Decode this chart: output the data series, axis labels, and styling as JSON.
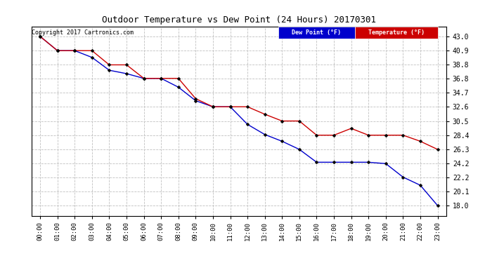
{
  "title": "Outdoor Temperature vs Dew Point (24 Hours) 20170301",
  "copyright": "Copyright 2017 Cartronics.com",
  "temp_color": "#cc0000",
  "dew_color": "#0000cc",
  "background_color": "#ffffff",
  "grid_color": "#c0c0c0",
  "x_labels": [
    "00:00",
    "01:00",
    "02:00",
    "03:00",
    "04:00",
    "05:00",
    "06:00",
    "07:00",
    "08:00",
    "09:00",
    "10:00",
    "11:00",
    "12:00",
    "13:00",
    "14:00",
    "15:00",
    "16:00",
    "17:00",
    "18:00",
    "19:00",
    "20:00",
    "21:00",
    "22:00",
    "23:00"
  ],
  "y_ticks": [
    18.0,
    20.1,
    22.2,
    24.2,
    26.3,
    28.4,
    30.5,
    32.6,
    34.7,
    36.8,
    38.8,
    40.9,
    43.0
  ],
  "temperature": [
    43.0,
    40.9,
    40.9,
    40.9,
    38.8,
    38.8,
    36.8,
    36.8,
    36.8,
    33.8,
    32.6,
    32.6,
    32.6,
    31.5,
    30.5,
    30.5,
    28.4,
    28.4,
    29.4,
    28.4,
    28.4,
    28.4,
    27.5,
    26.3
  ],
  "dew_point": [
    43.0,
    40.9,
    40.9,
    39.9,
    38.0,
    37.5,
    36.8,
    36.8,
    35.5,
    33.5,
    32.6,
    32.6,
    30.0,
    28.5,
    27.5,
    26.3,
    24.4,
    24.4,
    24.4,
    24.4,
    24.2,
    22.2,
    21.0,
    18.0
  ],
  "legend_dew_bg": "#0000cc",
  "legend_temp_bg": "#cc0000",
  "legend_text_color": "#ffffff",
  "ylim_min": 16.5,
  "ylim_max": 44.5
}
